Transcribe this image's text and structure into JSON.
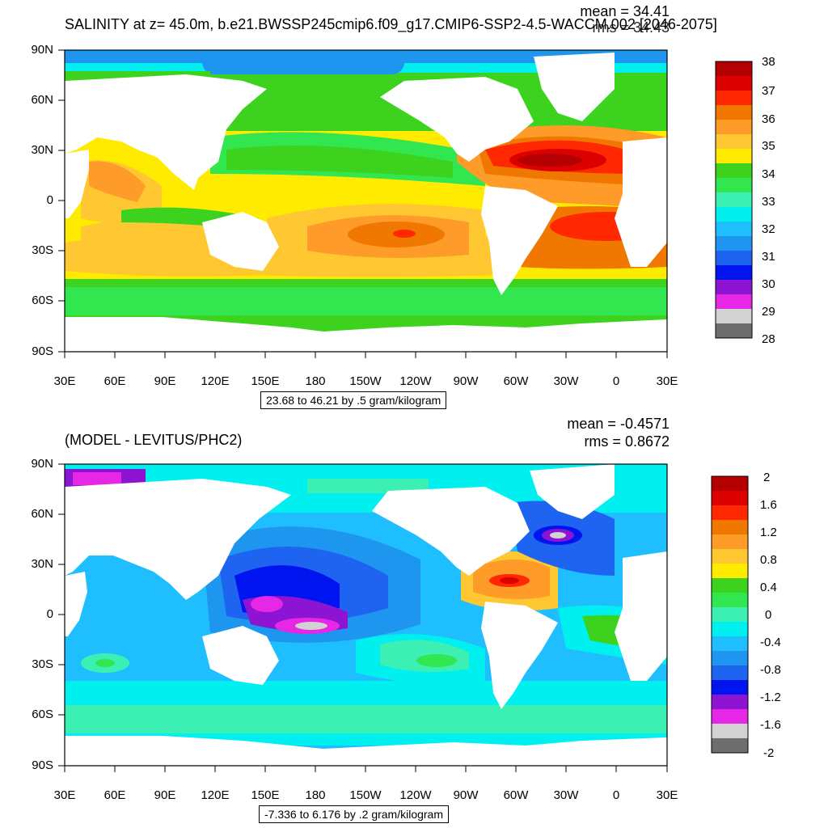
{
  "top": {
    "title": "SALINITY at z=  45.0m, b.e21.BWSSP245cmip6.f09_g17.CMIP6-SSP2-4.5-WACCM.002 [2046-2075]",
    "mean_label": "mean = 34.41",
    "rms_label": "rms = 34.43",
    "info_box": "23.68 to 46.21 by .5 gram/kilogram",
    "lat_ticks": [
      "90N",
      "60N",
      "30N",
      "0",
      "30S",
      "60S",
      "90S"
    ],
    "lon_ticks": [
      "30E",
      "60E",
      "90E",
      "120E",
      "150E",
      "180",
      "150W",
      "120W",
      "90W",
      "60W",
      "30W",
      "0",
      "30E"
    ],
    "colorbar_labels": [
      "38",
      "37",
      "36",
      "35",
      "34",
      "33",
      "32",
      "31",
      "30",
      "29",
      "28"
    ],
    "colorbar_colors": [
      "#b40000",
      "#dc0000",
      "#ff2800",
      "#f07800",
      "#ff9b28",
      "#ffc832",
      "#ffeb00",
      "#3cd21e",
      "#32e650",
      "#3cf0b4",
      "#00f0f0",
      "#1ebeff",
      "#1e96f0",
      "#1e64f0",
      "#0014f0",
      "#8c14d2",
      "#e628e6",
      "#d2d2d2",
      "#6e6e6e"
    ]
  },
  "bottom": {
    "title": "(MODEL - LEVITUS/PHC2)",
    "mean_label": "mean = -0.4571",
    "rms_label": "rms = 0.8672",
    "info_box": "-7.336 to 6.176 by .2 gram/kilogram",
    "lat_ticks": [
      "90N",
      "60N",
      "30N",
      "0",
      "30S",
      "60S",
      "90S"
    ],
    "lon_ticks": [
      "30E",
      "60E",
      "90E",
      "120E",
      "150E",
      "180",
      "150W",
      "120W",
      "90W",
      "60W",
      "30W",
      "0",
      "30E"
    ],
    "colorbar_labels": [
      "2",
      "1.6",
      "1.2",
      "0.8",
      "0.4",
      "0",
      "-0.4",
      "-0.8",
      "-1.2",
      "-1.6",
      "-2"
    ],
    "colorbar_colors": [
      "#b40000",
      "#dc0000",
      "#ff2800",
      "#f07800",
      "#ff9b28",
      "#ffc832",
      "#ffeb00",
      "#3cd21e",
      "#32e650",
      "#3cf0b4",
      "#00f0f0",
      "#1ebeff",
      "#1e96f0",
      "#1e64f0",
      "#0014f0",
      "#8c14d2",
      "#e628e6",
      "#d2d2d2",
      "#6e6e6e"
    ]
  },
  "colors": {
    "land": "#ffffff",
    "frame": "#000000"
  }
}
